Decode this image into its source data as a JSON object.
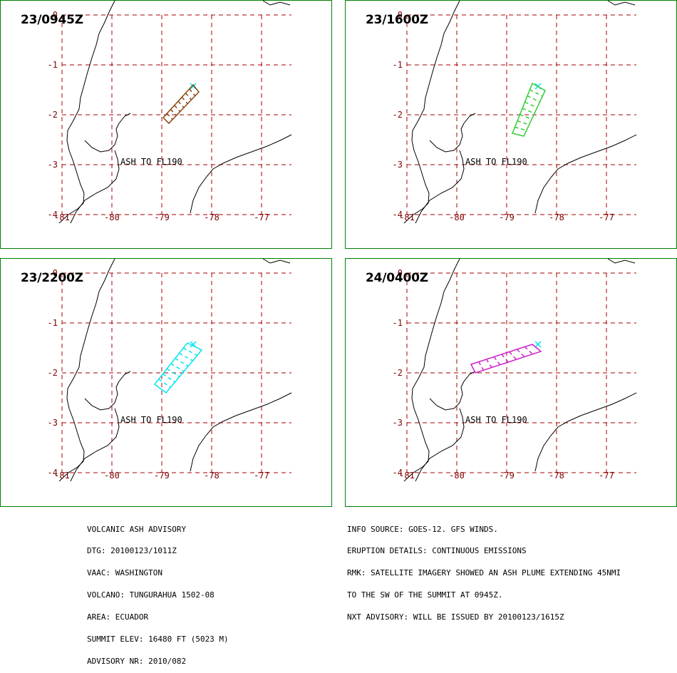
{
  "panels": [
    {
      "time": "23/0945Z",
      "ash_text": "ASH TO FL190",
      "plume_color": "#8B4513",
      "plume_shape": "narrow-sw"
    },
    {
      "time": "23/1600Z",
      "ash_text": "ASH TO FL190",
      "plume_color": "#33cc33",
      "plume_shape": "south"
    },
    {
      "time": "23/2200Z",
      "ash_text": "ASH TO FL190",
      "plume_color": "#00e5ee",
      "plume_shape": "sw"
    },
    {
      "time": "24/0400Z",
      "ash_text": "ASH TO FL190",
      "plume_color": "#cc22cc",
      "plume_shape": "west"
    }
  ],
  "map": {
    "lat_ticks": [
      "0",
      "-1",
      "-2",
      "-3",
      "-4"
    ],
    "lon_ticks": [
      "-81",
      "-80",
      "-79",
      "-78",
      "-77"
    ],
    "grid_color": "#aa0000",
    "tick_color": "#800000",
    "volcano_marker_color": "#00e5ee",
    "frame_color": "#008000"
  },
  "advisory_left": [
    "VOLCANIC ASH ADVISORY",
    "DTG: 20100123/1011Z",
    "VAAC: WASHINGTON",
    "VOLCANO: TUNGURAHUA 1502-08",
    "AREA: ECUADOR",
    "SUMMIT ELEV: 16480 FT (5023 M)",
    "ADVISORY NR: 2010/082"
  ],
  "advisory_right": [
    "INFO SOURCE: GOES-12. GFS WINDS.",
    "ERUPTION DETAILS: CONTINUOUS EMISSIONS",
    "RMK: SATELLITE IMAGERY SHOWED AN ASH PLUME EXTENDING 45NMI",
    "TO THE SW OF THE SUMMIT AT 0945Z.",
    "NXT ADVISORY: WILL BE ISSUED BY 20100123/1615Z"
  ]
}
